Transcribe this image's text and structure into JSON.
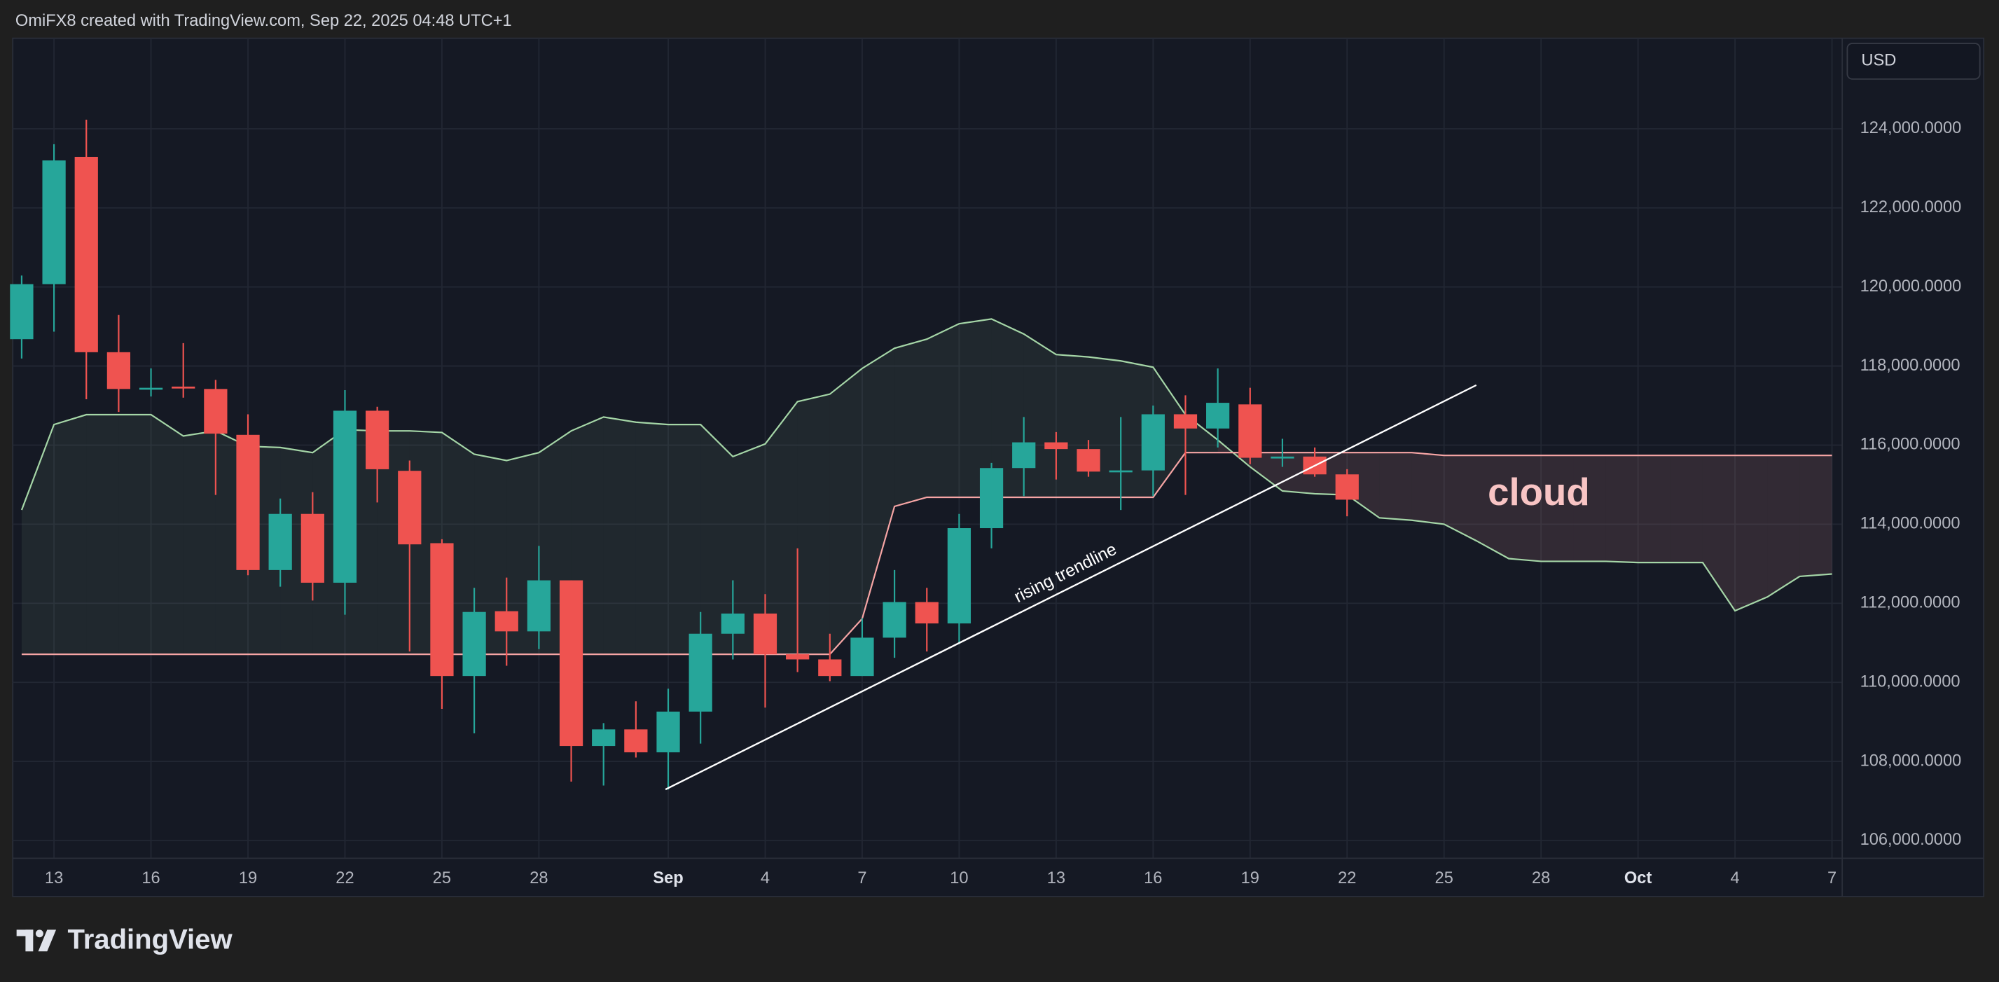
{
  "header": "OmiFX8 created with TradingView.com, Sep 22, 2025 04:48 UTC+1",
  "footer": "TradingView",
  "chart_data": {
    "type": "candlestick",
    "currency": "USD",
    "categories": [
      null,
      "13",
      null,
      null,
      "16",
      null,
      null,
      "19",
      null,
      null,
      "22",
      null,
      null,
      "25",
      null,
      null,
      "28",
      null,
      null,
      null,
      "Sep",
      null,
      null,
      "4",
      null,
      null,
      "7",
      null,
      null,
      "10",
      null,
      null,
      "13",
      null,
      null,
      "16",
      null,
      null,
      "19",
      null,
      null,
      "22",
      null,
      null,
      "25",
      null,
      null,
      "28",
      null,
      null,
      "Oct",
      null,
      null,
      "4",
      null,
      null,
      "7"
    ],
    "open": [
      118680,
      120070,
      123290,
      118350,
      117420,
      117480,
      117420,
      116260,
      112840,
      114260,
      112520,
      116870,
      115350,
      113520,
      110160,
      111800,
      111290,
      112580,
      108390,
      108810,
      108230,
      109260,
      111230,
      111740,
      110710,
      110580,
      110160,
      111130,
      112030,
      111490,
      113900,
      115420,
      116070,
      115900,
      115330,
      115360,
      116780,
      116420,
      117030,
      115680,
      115710,
      115260,
      null,
      null,
      null,
      null,
      null,
      null,
      null,
      null,
      null,
      null,
      null,
      null,
      null,
      null,
      null
    ],
    "high": [
      120290,
      123610,
      124230,
      119290,
      117940,
      118580,
      117650,
      116780,
      114650,
      114810,
      117390,
      116970,
      115610,
      113620,
      112390,
      112650,
      113450,
      112580,
      108970,
      109520,
      109840,
      111780,
      112580,
      112230,
      113390,
      111230,
      111620,
      112840,
      112390,
      114260,
      115550,
      116710,
      116330,
      116130,
      116710,
      117000,
      117260,
      117940,
      117450,
      116160,
      115940,
      115390,
      null,
      null,
      null,
      null,
      null,
      null,
      null,
      null,
      null,
      null,
      null,
      null,
      null,
      null,
      null
    ],
    "low": [
      118190,
      118870,
      117160,
      116840,
      117230,
      117200,
      114740,
      112710,
      112420,
      112070,
      111710,
      114550,
      110780,
      109330,
      108710,
      110420,
      110840,
      107490,
      107390,
      108100,
      107290,
      108450,
      110580,
      109360,
      110260,
      110030,
      110160,
      110620,
      110780,
      110970,
      113390,
      114710,
      115130,
      115200,
      114360,
      114710,
      114740,
      115940,
      115520,
      115450,
      115200,
      114200,
      null,
      null,
      null,
      null,
      null,
      null,
      null,
      null,
      null,
      null,
      null,
      null,
      null,
      null,
      null
    ],
    "close": [
      120070,
      123200,
      118350,
      117420,
      117450,
      117450,
      116290,
      112840,
      114260,
      112520,
      116870,
      115390,
      113490,
      110160,
      111780,
      111290,
      112580,
      108390,
      108810,
      108230,
      109260,
      111230,
      111740,
      110710,
      110580,
      110160,
      111130,
      112030,
      111490,
      113900,
      115420,
      116070,
      115900,
      115330,
      115360,
      116780,
      116420,
      117070,
      115680,
      115710,
      115260,
      114620,
      null,
      null,
      null,
      null,
      null,
      null,
      null,
      null,
      null,
      null,
      null,
      null,
      null,
      null,
      null
    ],
    "up_color": "#26a69a",
    "down_color": "#ef5350",
    "cloud_lines": [
      {
        "color": "#a5d6a7",
        "values": [
          114360,
          116520,
          116770,
          116770,
          116770,
          116230,
          116360,
          115970,
          115940,
          115810,
          116390,
          116360,
          116360,
          116320,
          115770,
          115610,
          115810,
          116360,
          116710,
          116580,
          116520,
          116520,
          115710,
          116030,
          117100,
          117290,
          117940,
          118450,
          118680,
          119070,
          119190,
          118810,
          118290,
          118230,
          118130,
          117970,
          116770,
          116130,
          115450,
          114840,
          114770,
          114740,
          114160,
          114100,
          114000,
          113580,
          113130,
          113060,
          113060,
          113060,
          113030,
          113030,
          113030,
          111810,
          112160,
          112680,
          112740
        ]
      },
      {
        "color": "#f7a5a5",
        "values": [
          110710,
          110710,
          110710,
          110710,
          110710,
          110710,
          110710,
          110710,
          110710,
          110710,
          110710,
          110710,
          110710,
          110710,
          110710,
          110710,
          110710,
          110710,
          110710,
          110710,
          110710,
          110710,
          110710,
          110710,
          110710,
          110710,
          111610,
          114450,
          114680,
          114680,
          114680,
          114680,
          114680,
          114680,
          114680,
          114680,
          115810,
          115810,
          115810,
          115810,
          115810,
          115810,
          115810,
          115810,
          115740,
          115740,
          115740,
          115740,
          115740,
          115740,
          115740,
          115740,
          115740,
          115740,
          115740,
          115740,
          115740
        ]
      }
    ],
    "annotations": [
      "rising trendline",
      "cloud"
    ],
    "ylim": [
      105550,
      126290
    ],
    "yticks": [
      {
        "value": 106000,
        "label": "106,000.0000"
      },
      {
        "value": 108000,
        "label": "108,000.0000"
      },
      {
        "value": 110000,
        "label": "110,000.0000"
      },
      {
        "value": 112000,
        "label": "112,000.0000"
      },
      {
        "value": 114000,
        "label": "114,000.0000"
      },
      {
        "value": 116000,
        "label": "116,000.0000"
      },
      {
        "value": 118000,
        "label": "118,000.0000"
      },
      {
        "value": 120000,
        "label": "120,000.0000"
      },
      {
        "value": 122000,
        "label": "122,000.0000"
      },
      {
        "value": 124000,
        "label": "124,000.0000"
      }
    ],
    "grid": true
  }
}
